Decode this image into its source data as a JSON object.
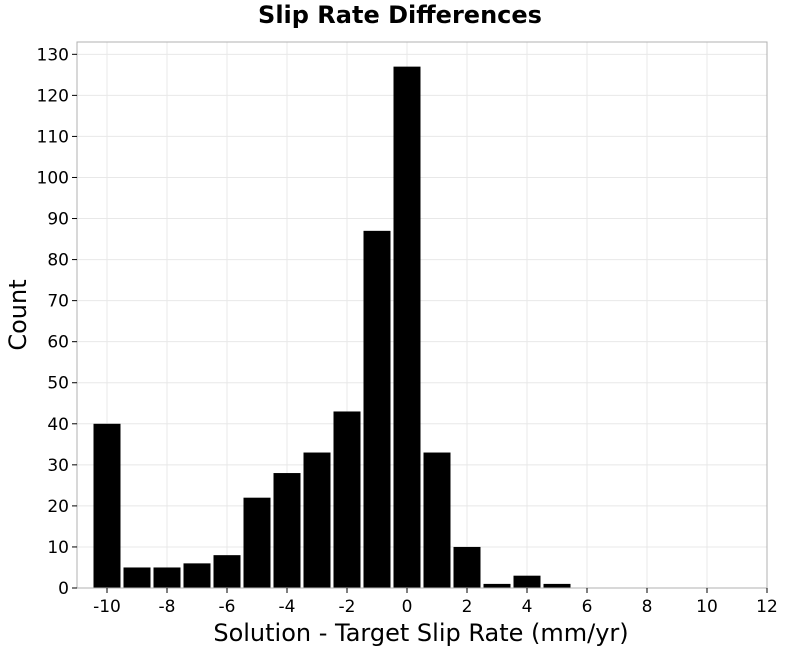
{
  "chart_data": {
    "type": "bar",
    "title": "Slip Rate Differences",
    "xlabel": "Solution - Target Slip Rate (mm/yr)",
    "ylabel": "Count",
    "xlim": [
      -11,
      12
    ],
    "ylim": [
      0,
      133
    ],
    "xticks": [
      -10,
      -8,
      -6,
      -4,
      -2,
      0,
      2,
      4,
      6,
      8,
      10,
      12
    ],
    "yticks": [
      0,
      10,
      20,
      30,
      40,
      50,
      60,
      70,
      80,
      90,
      100,
      110,
      120,
      130
    ],
    "grid": true,
    "bar_color": "#000000",
    "bin_width": 1,
    "bin_centers": [
      -10,
      -9,
      -8,
      -7,
      -6,
      -5,
      -4,
      -3,
      -2,
      -1,
      0,
      1,
      2,
      3,
      4,
      5
    ],
    "values": [
      40,
      5,
      5,
      6,
      8,
      22,
      28,
      33,
      43,
      87,
      127,
      33,
      10,
      1,
      3,
      1
    ]
  }
}
